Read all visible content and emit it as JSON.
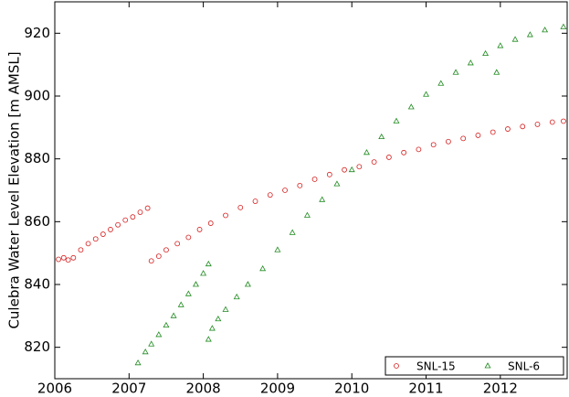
{
  "chart_data": {
    "type": "scatter",
    "ylabel": "Culebra Water Level Elevation [m AMSL]",
    "xlim": [
      2006,
      2012.9
    ],
    "ylim": [
      810,
      930
    ],
    "xticks": [
      2006,
      2007,
      2008,
      2009,
      2010,
      2011,
      2012
    ],
    "yticks": [
      820,
      840,
      860,
      880,
      900,
      920
    ],
    "grid": false,
    "legend": "lower right",
    "series": [
      {
        "name": "SNL-15",
        "color": "#d62020",
        "marker": "circle",
        "x": [
          2006.05,
          2006.12,
          2006.18,
          2006.25,
          2006.35,
          2006.45,
          2006.55,
          2006.65,
          2006.75,
          2006.85,
          2006.95,
          2007.05,
          2007.15,
          2007.25,
          2007.3,
          2007.4,
          2007.5,
          2007.65,
          2007.8,
          2007.95,
          2008.1,
          2008.3,
          2008.5,
          2008.7,
          2008.9,
          2009.1,
          2009.3,
          2009.5,
          2009.7,
          2009.9,
          2010.1,
          2010.3,
          2010.5,
          2010.7,
          2010.9,
          2011.1,
          2011.3,
          2011.5,
          2011.7,
          2011.9,
          2012.1,
          2012.3,
          2012.5,
          2012.7,
          2012.85
        ],
        "values": [
          848,
          848.5,
          847.8,
          848.5,
          851,
          853,
          854.5,
          856,
          857.5,
          859,
          860.5,
          861.5,
          863,
          864.3,
          847.5,
          849,
          851,
          853,
          855,
          857.5,
          859.5,
          862,
          864.5,
          866.5,
          868.5,
          870,
          871.5,
          873.5,
          875,
          876.5,
          877.5,
          879,
          880.5,
          882,
          883,
          884.5,
          885.5,
          886.5,
          887.5,
          888.5,
          889.5,
          890.3,
          891,
          891.7,
          892
        ]
      },
      {
        "name": "SNL-6",
        "color": "#1f8a1f",
        "marker": "triangle",
        "x": [
          2007.12,
          2007.22,
          2007.3,
          2007.4,
          2007.5,
          2007.6,
          2007.7,
          2007.8,
          2007.9,
          2008.0,
          2008.07,
          2008.07,
          2008.12,
          2008.2,
          2008.3,
          2008.45,
          2008.6,
          2008.8,
          2009.0,
          2009.2,
          2009.4,
          2009.6,
          2009.8,
          2010.0,
          2010.2,
          2010.4,
          2010.6,
          2010.8,
          2011.0,
          2011.2,
          2011.4,
          2011.6,
          2011.8,
          2011.95,
          2012.0,
          2012.2,
          2012.4,
          2012.6,
          2012.85
        ],
        "values": [
          815,
          818.5,
          821,
          824,
          827,
          830,
          833.5,
          837,
          840,
          843.5,
          846.5,
          822.5,
          826,
          829,
          832,
          836,
          840,
          845,
          851,
          856.5,
          862,
          867,
          872,
          876.5,
          882,
          887,
          892,
          896.5,
          900.5,
          904,
          907.5,
          910.5,
          913.5,
          907.5,
          916,
          918,
          919.5,
          921,
          922
        ]
      }
    ]
  }
}
